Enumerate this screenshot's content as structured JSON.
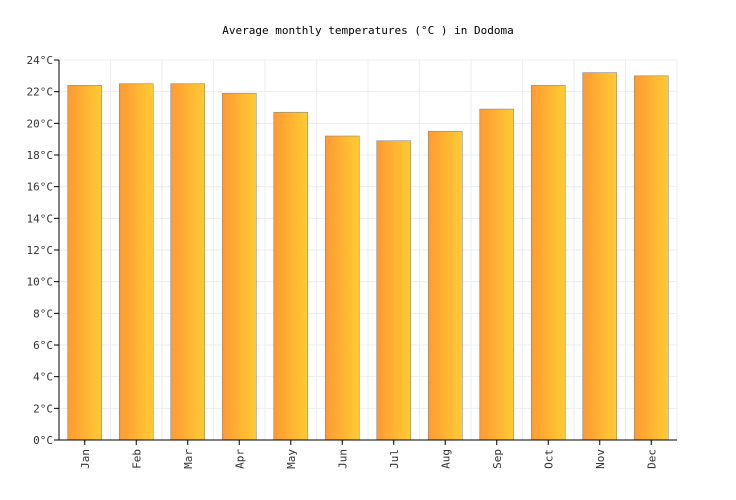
{
  "chart_data": {
    "type": "bar",
    "title": "Average monthly temperatures (°C ) in Dodoma",
    "xlabel": "",
    "ylabel": "",
    "categories": [
      "Jan",
      "Feb",
      "Mar",
      "Apr",
      "May",
      "Jun",
      "Jul",
      "Aug",
      "Sep",
      "Oct",
      "Nov",
      "Dec"
    ],
    "values": [
      22.4,
      22.5,
      22.5,
      21.9,
      20.7,
      19.2,
      18.9,
      19.5,
      20.9,
      22.4,
      23.2,
      23.0
    ],
    "ylim": [
      0,
      24
    ],
    "yticks": [
      0,
      2,
      4,
      6,
      8,
      10,
      12,
      14,
      16,
      18,
      20,
      22,
      24
    ],
    "ytick_labels": [
      "0°C",
      "2°C",
      "4°C",
      "6°C",
      "8°C",
      "10°C",
      "12°C",
      "14°C",
      "16°C",
      "18°C",
      "20°C",
      "22°C",
      "24°C"
    ],
    "grid": true,
    "legend": "none",
    "colors": {
      "bar_start": "#ff9933",
      "bar_end": "#ffcc33",
      "bar_stroke": "#888888",
      "grid": "#eeeeee"
    }
  }
}
